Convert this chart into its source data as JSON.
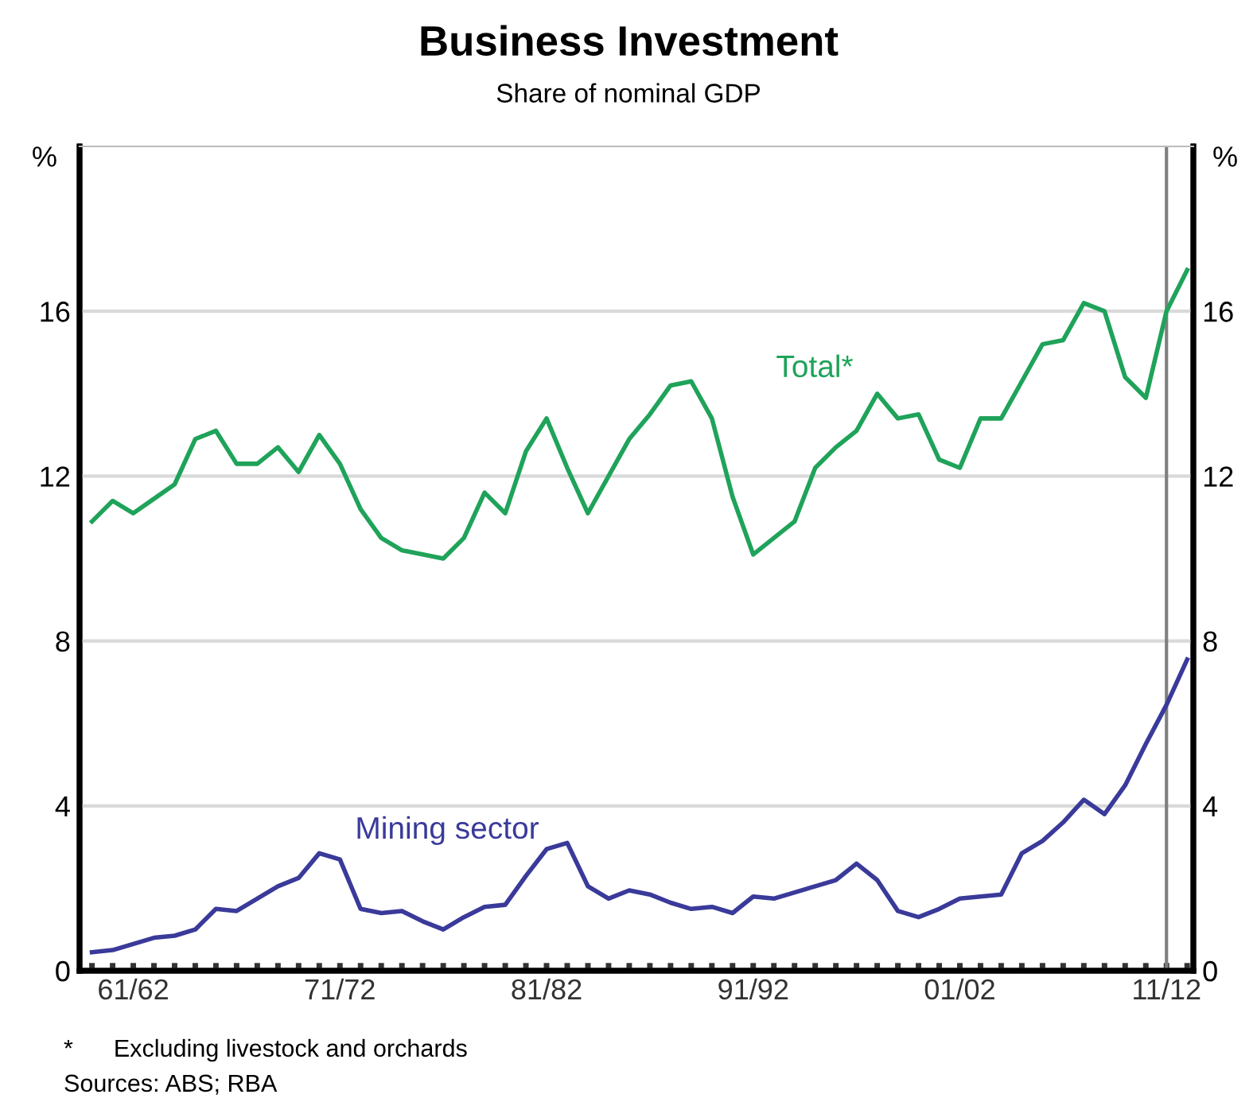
{
  "chart_data": {
    "type": "line",
    "title": "Business Investment",
    "subtitle": "Share of nominal GDP",
    "ylabel": "%",
    "y2label": "%",
    "categories": [
      null,
      null,
      "61/62",
      null,
      null,
      null,
      null,
      null,
      null,
      null,
      null,
      null,
      "71/72",
      null,
      null,
      null,
      null,
      null,
      null,
      null,
      null,
      null,
      "81/82",
      null,
      null,
      null,
      null,
      null,
      null,
      null,
      null,
      null,
      "91/92",
      null,
      null,
      null,
      null,
      null,
      null,
      null,
      null,
      null,
      "01/02",
      null,
      null,
      null,
      null,
      null,
      null,
      null,
      null,
      null,
      "11/12",
      null
    ],
    "ylim": [
      0,
      20
    ],
    "yticks": [
      0,
      4,
      8,
      12,
      16
    ],
    "y2lim": [
      0,
      20
    ],
    "y2ticks": [
      0,
      4,
      8,
      12,
      16
    ],
    "grid": "y",
    "legend": false,
    "marker": "none",
    "line_style": "solid",
    "ref_lines": [
      {
        "axis": "x",
        "value": "11/12",
        "color": "#808080"
      }
    ],
    "series": [
      {
        "name": "Total*",
        "color": "#1fa35a",
        "values": [
          10.9,
          11.4,
          11.1,
          11.45,
          11.8,
          12.9,
          13.1,
          12.3,
          12.3,
          12.7,
          12.1,
          13.0,
          12.3,
          11.2,
          10.5,
          10.2,
          10.1,
          10.0,
          10.5,
          11.6,
          11.1,
          12.6,
          13.4,
          12.2,
          11.1,
          12.0,
          12.9,
          13.5,
          14.2,
          14.3,
          13.4,
          11.5,
          10.1,
          10.5,
          10.9,
          12.2,
          12.7,
          13.1,
          14.0,
          13.4,
          13.5,
          12.4,
          12.2,
          13.4,
          13.4,
          14.3,
          15.2,
          15.3,
          16.2,
          16.0,
          14.4,
          13.9,
          16.0,
          17.0
        ]
      },
      {
        "name": "Mining sector",
        "color": "#3a3a9a",
        "values": [
          0.45,
          0.5,
          0.65,
          0.8,
          0.85,
          1.0,
          1.5,
          1.45,
          1.75,
          2.05,
          2.25,
          2.85,
          2.7,
          1.5,
          1.4,
          1.45,
          1.2,
          1.0,
          1.3,
          1.55,
          1.6,
          2.3,
          2.95,
          3.1,
          2.05,
          1.75,
          1.95,
          1.85,
          1.65,
          1.5,
          1.55,
          1.4,
          1.8,
          1.75,
          1.9,
          2.05,
          2.2,
          2.6,
          2.2,
          1.45,
          1.3,
          1.5,
          1.75,
          1.8,
          1.85,
          2.85,
          3.15,
          3.6,
          4.15,
          3.8,
          4.5,
          5.5,
          6.45,
          7.55
        ]
      }
    ],
    "annotations": [
      "*      Excluding livestock and orchards",
      "Sources: ABS; RBA"
    ]
  }
}
